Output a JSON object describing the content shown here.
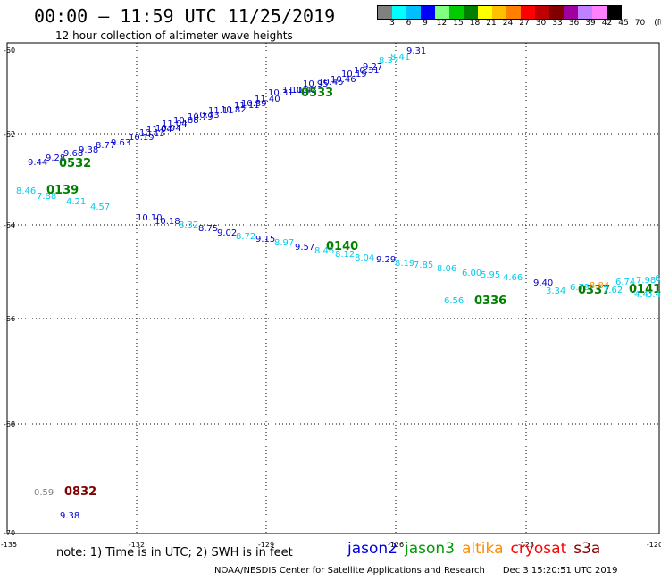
{
  "header": {
    "title": "00:00 — 11:59 UTC 11/25/2019",
    "subtitle": "12 hour collection of altimeter wave heights"
  },
  "legend": {
    "colors": [
      "#808080",
      "#00ffff",
      "#00bfff",
      "#0000ff",
      "#80ff80",
      "#00cc00",
      "#008000",
      "#ffff00",
      "#ffc000",
      "#ff8000",
      "#ff0000",
      "#c00000",
      "#800000",
      "#a000a0",
      "#c080ff",
      "#ff80ff",
      "#000000"
    ],
    "labels": [
      "3",
      "6",
      "9",
      "12",
      "15",
      "18",
      "21",
      "24",
      "27",
      "30",
      "33",
      "36",
      "39",
      "42",
      "45",
      "70",
      "(ft)"
    ]
  },
  "axes": {
    "lat_labels": [
      "-60",
      "-62",
      "-64",
      "-66",
      "-68",
      "-70"
    ],
    "lon_labels": [
      "-135",
      "-132",
      "-129",
      "-126",
      "-123",
      "-120"
    ]
  },
  "labels": [
    {
      "t": "9.31",
      "c": "#0000cc"
    },
    {
      "t": "8.41",
      "c": "#00ccee"
    },
    {
      "t": "8.37",
      "c": "#00ccee"
    },
    {
      "t": "9.27",
      "c": "#0000cc"
    },
    {
      "t": "10.31",
      "c": "#0000cc"
    },
    {
      "t": "10.19",
      "c": "#0000cc"
    },
    {
      "t": "10.46",
      "c": "#0000cc"
    },
    {
      "t": "10.45",
      "c": "#0000cc"
    },
    {
      "t": "10.95",
      "c": "#0000cc"
    },
    {
      "t": "11.43",
      "c": "#0000cc"
    },
    {
      "t": "11.01",
      "c": "#0000cc"
    },
    {
      "t": "10.31",
      "c": "#0000cc"
    },
    {
      "t": "11.40",
      "c": "#0000cc"
    },
    {
      "t": "10.39",
      "c": "#0000cc"
    },
    {
      "t": "11.11",
      "c": "#0000cc"
    },
    {
      "t": "10.82",
      "c": "#0000cc"
    },
    {
      "t": "11.11",
      "c": "#0000cc"
    },
    {
      "t": "10.73",
      "c": "#0000cc"
    },
    {
      "t": "10.79",
      "c": "#0000cc"
    },
    {
      "t": "10.88",
      "c": "#0000cc"
    },
    {
      "t": "11.04",
      "c": "#0000cc"
    },
    {
      "t": "10.94",
      "c": "#0000cc"
    },
    {
      "t": "11.04",
      "c": "#0000cc"
    },
    {
      "t": "10.13",
      "c": "#0000cc"
    },
    {
      "t": "10.19",
      "c": "#0000cc"
    },
    {
      "t": "9.63",
      "c": "#0000cc"
    },
    {
      "t": "8.77",
      "c": "#0000cc"
    },
    {
      "t": "9.38",
      "c": "#0000cc"
    },
    {
      "t": "9.68",
      "c": "#0000cc"
    },
    {
      "t": "9.28",
      "c": "#0000cc"
    },
    {
      "t": "9.44",
      "c": "#0000cc"
    },
    {
      "t": "0532",
      "c": "#008000"
    },
    {
      "t": "0533",
      "c": "#008000"
    },
    {
      "t": "8.46",
      "c": "#00ccee"
    },
    {
      "t": "7.88",
      "c": "#00ccee"
    },
    {
      "t": "0139",
      "c": "#008000"
    },
    {
      "t": "4.21",
      "c": "#00ccee"
    },
    {
      "t": "4.57",
      "c": "#00ccee"
    },
    {
      "t": "10.10",
      "c": "#0000cc"
    },
    {
      "t": "10.18",
      "c": "#0000cc"
    },
    {
      "t": "8.32",
      "c": "#00ccee"
    },
    {
      "t": "8.75",
      "c": "#0000cc"
    },
    {
      "t": "9.02",
      "c": "#0000cc"
    },
    {
      "t": "8.72",
      "c": "#00ccee"
    },
    {
      "t": "9.15",
      "c": "#0000cc"
    },
    {
      "t": "8.97",
      "c": "#00ccee"
    },
    {
      "t": "9.57",
      "c": "#0000cc"
    },
    {
      "t": "0140",
      "c": "#008000"
    },
    {
      "t": "8.46",
      "c": "#00ccee"
    },
    {
      "t": "8.12",
      "c": "#00ccee"
    },
    {
      "t": "8.04",
      "c": "#00ccee"
    },
    {
      "t": "9.29",
      "c": "#0000cc"
    },
    {
      "t": "8.19",
      "c": "#00ccee"
    },
    {
      "t": "7.85",
      "c": "#00ccee"
    },
    {
      "t": "8.06",
      "c": "#00ccee"
    },
    {
      "t": "6.00",
      "c": "#00ccee"
    },
    {
      "t": "5.95",
      "c": "#00ccee"
    },
    {
      "t": "4.66",
      "c": "#00ccee"
    },
    {
      "t": "6.56",
      "c": "#00ccee"
    },
    {
      "t": "0336",
      "c": "#008000"
    },
    {
      "t": "9.40",
      "c": "#0000cc"
    },
    {
      "t": "3.34",
      "c": "#00ccee"
    },
    {
      "t": "6.79",
      "c": "#00ccee"
    },
    {
      "t": "0337",
      "c": "#008000"
    },
    {
      "t": "8.84",
      "c": "#ff8c00"
    },
    {
      "t": "7.62",
      "c": "#00ccee"
    },
    {
      "t": "6.74",
      "c": "#00ccee"
    },
    {
      "t": "7.98",
      "c": "#00ccee"
    },
    {
      "t": "6",
      "c": "#00ccee"
    },
    {
      "t": "0141",
      "c": "#008000"
    },
    {
      "t": "4.4",
      "c": "#00ccee"
    },
    {
      "t": "3.4",
      "c": "#00ccee"
    },
    {
      "t": "0.59",
      "c": "#808080"
    },
    {
      "t": "0832",
      "c": "#800000"
    },
    {
      "t": "9.38",
      "c": "#0000cc"
    }
  ],
  "footer": {
    "note": "note: 1) Time is in UTC; 2) SWH is in feet",
    "satellites": [
      {
        "name": "jason2",
        "color": "#0000dd"
      },
      {
        "name": "jason3",
        "color": "#009900"
      },
      {
        "name": "altika",
        "color": "#ff8c00"
      },
      {
        "name": "cryosat",
        "color": "#ff0000"
      },
      {
        "name": "s3a",
        "color": "#8b0000"
      }
    ],
    "credit": "NOAA/NESDIS Center for Satellite Applications and Research",
    "timestamp": "Dec  3 15:20:51 UTC 2019"
  }
}
